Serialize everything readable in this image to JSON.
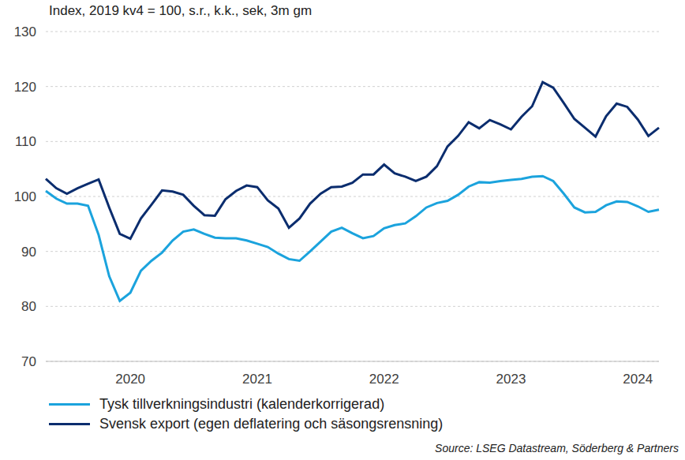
{
  "chart_data": {
    "type": "line",
    "title": "Index, 2019 kv4 = 100, s.r., k.k., sek, 3m gm",
    "annotations": [
      "Source: LSEG Datastream, Söderberg & Partners"
    ],
    "categories": [
      null,
      null,
      null,
      null,
      null,
      null,
      null,
      null,
      "2020",
      null,
      null,
      null,
      null,
      null,
      null,
      null,
      null,
      null,
      null,
      null,
      "2021",
      null,
      null,
      null,
      null,
      null,
      null,
      null,
      null,
      null,
      null,
      null,
      "2022",
      null,
      null,
      null,
      null,
      null,
      null,
      null,
      null,
      null,
      null,
      null,
      "2023",
      null,
      null,
      null,
      null,
      null,
      null,
      null,
      null,
      null,
      null,
      null,
      "2024",
      null,
      null
    ],
    "series": [
      {
        "name": "Tysk tillverkningsindustri (kalenderkorrigerad)",
        "color": "#1ba3dd",
        "values": [
          101,
          99.6,
          98.7,
          98.7,
          98.3,
          93,
          85.5,
          81,
          82.5,
          86.5,
          88.3,
          89.8,
          92,
          93.6,
          94,
          93.2,
          92.5,
          92.4,
          92.4,
          92,
          91.4,
          90.8,
          89.6,
          88.6,
          88.3,
          90,
          91.8,
          93.6,
          94.3,
          93.3,
          92.4,
          92.8,
          94.2,
          94.8,
          95.1,
          96.4,
          98,
          98.8,
          99.2,
          100.3,
          101.8,
          102.6,
          102.5,
          102.8,
          103,
          103.2,
          103.6,
          103.7,
          102.8,
          100.5,
          98,
          97.1,
          97.2,
          98.4,
          99.1,
          99,
          98.2,
          97.2,
          97.6
        ]
      },
      {
        "name": "Svensk export (egen deflatering och säsongsrensning)",
        "color": "#0b2d6e",
        "values": [
          103.2,
          101.5,
          100.5,
          101.5,
          102.3,
          103.1,
          98,
          93.2,
          92.3,
          96,
          98.5,
          101.1,
          100.9,
          100.3,
          98.3,
          96.6,
          96.5,
          99.5,
          101,
          102,
          101.7,
          99.3,
          97.8,
          94.3,
          96,
          98.7,
          100.5,
          101.7,
          101.8,
          102.5,
          104,
          104,
          105.8,
          104.2,
          103.6,
          102.8,
          103.6,
          105.5,
          109.1,
          111,
          113.5,
          112.4,
          113.9,
          113.1,
          112.2,
          114.5,
          116.4,
          120.8,
          119.8,
          117,
          114.1,
          112.5,
          110.9,
          114.6,
          116.9,
          116.3,
          114,
          111,
          112.5
        ]
      }
    ],
    "ylim": [
      70,
      130
    ],
    "yticks": [
      70,
      80,
      90,
      100,
      110,
      120,
      130
    ],
    "grid": true,
    "legend": "bottom"
  }
}
